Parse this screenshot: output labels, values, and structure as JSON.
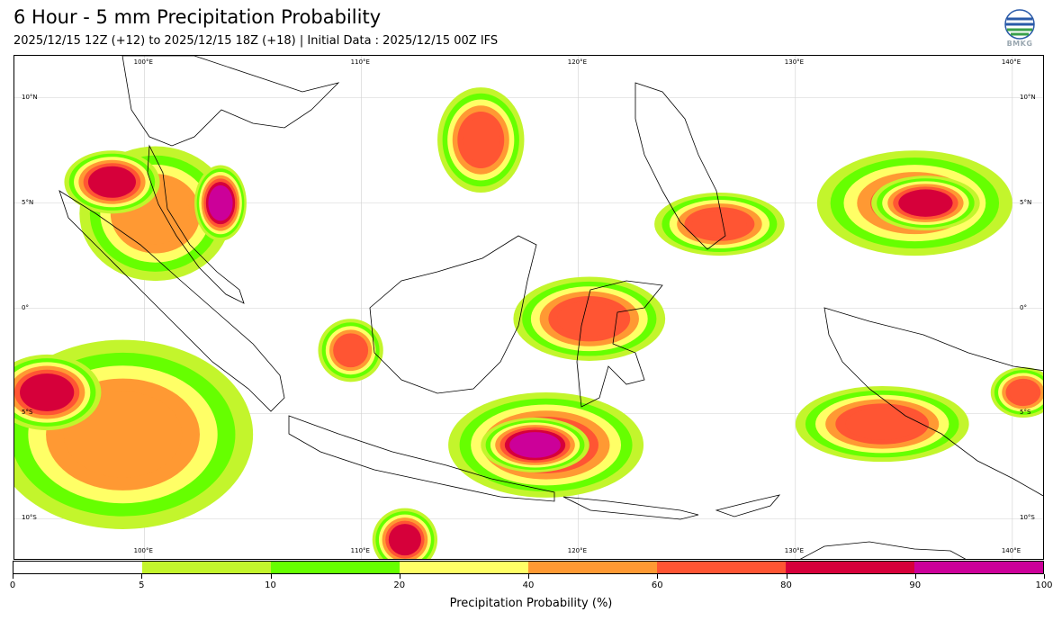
{
  "header": {
    "title": "6 Hour - 5 mm Precipitation Probability",
    "subtitle": "2025/12/15 12Z (+12) to 2025/12/15 18Z (+18) | Initial Data : 2025/12/15 00Z IFS"
  },
  "logo": {
    "text": "BMKG",
    "icon": "bmkg-logo-icon"
  },
  "map": {
    "region": "Indonesia",
    "extent": {
      "lon_min": 94,
      "lon_max": 141.5,
      "lat_min": -12,
      "lat_max": 12
    },
    "lon_labels": [
      "100°E",
      "110°E",
      "120°E",
      "130°E",
      "140°E"
    ],
    "lon_values": [
      100,
      110,
      120,
      130,
      140
    ],
    "lat_labels": [
      "10°N",
      "5°N",
      "0°",
      "5°S",
      "10°S"
    ],
    "lat_values": [
      10,
      5,
      0,
      -5,
      -10
    ],
    "precip_blobs": [
      {
        "lon": 100.5,
        "lat": 4.5,
        "rx": 3.5,
        "ry": 3.2,
        "prob": 45
      },
      {
        "lon": 98.5,
        "lat": 6.0,
        "rx": 2.2,
        "ry": 1.5,
        "prob": 85
      },
      {
        "lon": 103.5,
        "lat": 5.0,
        "rx": 1.2,
        "ry": 1.8,
        "prob": 92
      },
      {
        "lon": 99.0,
        "lat": -6.0,
        "rx": 6.0,
        "ry": 4.5,
        "prob": 45
      },
      {
        "lon": 95.5,
        "lat": -4.0,
        "rx": 2.5,
        "ry": 1.8,
        "prob": 85
      },
      {
        "lon": 115.5,
        "lat": 8.0,
        "rx": 2.0,
        "ry": 2.5,
        "prob": 70
      },
      {
        "lon": 120.5,
        "lat": -0.5,
        "rx": 3.5,
        "ry": 2.0,
        "prob": 75
      },
      {
        "lon": 118.5,
        "lat": -6.5,
        "rx": 4.5,
        "ry": 2.5,
        "prob": 70
      },
      {
        "lon": 118.0,
        "lat": -6.5,
        "rx": 2.5,
        "ry": 1.3,
        "prob": 92
      },
      {
        "lon": 126.5,
        "lat": 4.0,
        "rx": 3.0,
        "ry": 1.5,
        "prob": 65
      },
      {
        "lon": 135.5,
        "lat": 5.0,
        "rx": 4.5,
        "ry": 2.5,
        "prob": 60
      },
      {
        "lon": 136.0,
        "lat": 5.0,
        "rx": 2.5,
        "ry": 1.3,
        "prob": 85
      },
      {
        "lon": 134.0,
        "lat": -5.5,
        "rx": 4.0,
        "ry": 1.8,
        "prob": 65
      },
      {
        "lon": 112.0,
        "lat": -11.0,
        "rx": 1.5,
        "ry": 1.5,
        "prob": 85
      },
      {
        "lon": 109.5,
        "lat": -2.0,
        "rx": 1.5,
        "ry": 1.5,
        "prob": 65
      },
      {
        "lon": 140.5,
        "lat": -4.0,
        "rx": 1.5,
        "ry": 1.2,
        "prob": 75
      }
    ]
  },
  "colorbar": {
    "label": "Precipitation Probability (%)",
    "bounds": [
      0,
      5,
      10,
      20,
      40,
      60,
      80,
      90,
      100
    ],
    "tick_labels": [
      "0",
      "5",
      "10",
      "20",
      "40",
      "60",
      "80",
      "90",
      "100"
    ],
    "colors": [
      "#ffffff",
      "#c3f52c",
      "#66ff00",
      "#ffff66",
      "#ff9933",
      "#ff5533",
      "#d6003a",
      "#cc0099"
    ]
  }
}
